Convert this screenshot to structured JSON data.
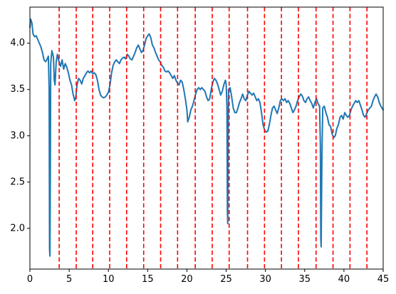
{
  "chart_data": {
    "type": "line",
    "title": "",
    "xlabel": "",
    "ylabel": "",
    "xlim": [
      0,
      45
    ],
    "ylim": [
      1.56,
      4.39
    ],
    "grid": false,
    "legend": "none",
    "x_ticks": [
      0,
      5,
      10,
      15,
      20,
      25,
      30,
      35,
      40,
      45
    ],
    "x_tick_labels": [
      "0",
      "5",
      "10",
      "15",
      "20",
      "25",
      "30",
      "35",
      "40",
      "45"
    ],
    "y_ticks": [
      2.0,
      2.5,
      3.0,
      3.5,
      4.0
    ],
    "y_tick_labels": [
      "2.0",
      "2.5",
      "3.0",
      "3.5",
      "4.0"
    ],
    "series": [
      {
        "color": "#1f77b4",
        "points": [
          [
            0.0,
            4.17
          ],
          [
            0.1,
            4.26
          ],
          [
            0.25,
            4.22
          ],
          [
            0.4,
            4.1
          ],
          [
            0.6,
            4.07
          ],
          [
            0.8,
            4.08
          ],
          [
            1.0,
            4.04
          ],
          [
            1.2,
            4.0
          ],
          [
            1.4,
            3.96
          ],
          [
            1.6,
            3.9
          ],
          [
            1.8,
            3.82
          ],
          [
            2.0,
            3.8
          ],
          [
            2.2,
            3.83
          ],
          [
            2.35,
            3.86
          ],
          [
            2.45,
            3.5
          ],
          [
            2.5,
            1.78
          ],
          [
            2.55,
            1.7
          ],
          [
            2.6,
            2.6
          ],
          [
            2.65,
            3.78
          ],
          [
            2.8,
            3.92
          ],
          [
            3.0,
            3.85
          ],
          [
            3.1,
            3.6
          ],
          [
            3.2,
            3.55
          ],
          [
            3.35,
            3.8
          ],
          [
            3.5,
            3.88
          ],
          [
            3.7,
            3.8
          ],
          [
            3.9,
            3.75
          ],
          [
            4.1,
            3.82
          ],
          [
            4.3,
            3.72
          ],
          [
            4.5,
            3.78
          ],
          [
            4.7,
            3.74
          ],
          [
            4.9,
            3.68
          ],
          [
            5.1,
            3.6
          ],
          [
            5.3,
            3.55
          ],
          [
            5.5,
            3.45
          ],
          [
            5.7,
            3.38
          ],
          [
            5.85,
            3.42
          ],
          [
            6.0,
            3.55
          ],
          [
            6.2,
            3.62
          ],
          [
            6.4,
            3.6
          ],
          [
            6.6,
            3.56
          ],
          [
            6.8,
            3.62
          ],
          [
            7.0,
            3.65
          ],
          [
            7.2,
            3.68
          ],
          [
            7.4,
            3.7
          ],
          [
            7.6,
            3.68
          ],
          [
            7.8,
            3.7
          ],
          [
            8.0,
            3.67
          ],
          [
            8.2,
            3.68
          ],
          [
            8.4,
            3.66
          ],
          [
            8.6,
            3.6
          ],
          [
            8.8,
            3.5
          ],
          [
            9.0,
            3.44
          ],
          [
            9.2,
            3.42
          ],
          [
            9.4,
            3.41
          ],
          [
            9.6,
            3.42
          ],
          [
            9.8,
            3.44
          ],
          [
            10.0,
            3.47
          ],
          [
            10.2,
            3.55
          ],
          [
            10.4,
            3.68
          ],
          [
            10.6,
            3.76
          ],
          [
            10.8,
            3.8
          ],
          [
            11.0,
            3.82
          ],
          [
            11.2,
            3.8
          ],
          [
            11.4,
            3.78
          ],
          [
            11.6,
            3.82
          ],
          [
            11.8,
            3.84
          ],
          [
            12.0,
            3.85
          ],
          [
            12.2,
            3.83
          ],
          [
            12.4,
            3.88
          ],
          [
            12.6,
            3.86
          ],
          [
            12.8,
            3.83
          ],
          [
            13.0,
            3.82
          ],
          [
            13.2,
            3.86
          ],
          [
            13.4,
            3.9
          ],
          [
            13.6,
            3.95
          ],
          [
            13.8,
            3.98
          ],
          [
            14.0,
            3.94
          ],
          [
            14.2,
            3.9
          ],
          [
            14.4,
            3.92
          ],
          [
            14.6,
            3.98
          ],
          [
            14.8,
            4.05
          ],
          [
            15.0,
            4.08
          ],
          [
            15.2,
            4.1
          ],
          [
            15.4,
            4.06
          ],
          [
            15.6,
            3.98
          ],
          [
            15.8,
            3.95
          ],
          [
            16.0,
            3.9
          ],
          [
            16.2,
            3.86
          ],
          [
            16.4,
            3.82
          ],
          [
            16.6,
            3.8
          ],
          [
            16.8,
            3.76
          ],
          [
            17.0,
            3.74
          ],
          [
            17.2,
            3.7
          ],
          [
            17.4,
            3.69
          ],
          [
            17.6,
            3.7
          ],
          [
            17.8,
            3.68
          ],
          [
            18.0,
            3.65
          ],
          [
            18.2,
            3.62
          ],
          [
            18.4,
            3.65
          ],
          [
            18.6,
            3.6
          ],
          [
            18.8,
            3.57
          ],
          [
            19.0,
            3.55
          ],
          [
            19.2,
            3.6
          ],
          [
            19.4,
            3.58
          ],
          [
            19.6,
            3.5
          ],
          [
            19.8,
            3.4
          ],
          [
            20.0,
            3.28
          ],
          [
            20.1,
            3.15
          ],
          [
            20.3,
            3.2
          ],
          [
            20.5,
            3.28
          ],
          [
            20.7,
            3.32
          ],
          [
            20.9,
            3.38
          ],
          [
            21.1,
            3.45
          ],
          [
            21.3,
            3.5
          ],
          [
            21.5,
            3.52
          ],
          [
            21.7,
            3.5
          ],
          [
            21.9,
            3.52
          ],
          [
            22.1,
            3.5
          ],
          [
            22.3,
            3.48
          ],
          [
            22.5,
            3.42
          ],
          [
            22.7,
            3.38
          ],
          [
            22.9,
            3.4
          ],
          [
            23.1,
            3.5
          ],
          [
            23.3,
            3.58
          ],
          [
            23.5,
            3.62
          ],
          [
            23.7,
            3.6
          ],
          [
            23.9,
            3.56
          ],
          [
            24.1,
            3.5
          ],
          [
            24.3,
            3.44
          ],
          [
            24.5,
            3.48
          ],
          [
            24.7,
            3.55
          ],
          [
            24.9,
            3.6
          ],
          [
            25.0,
            3.56
          ],
          [
            25.1,
            3.3
          ],
          [
            25.15,
            2.2
          ],
          [
            25.2,
            2.05
          ],
          [
            25.25,
            3.0
          ],
          [
            25.3,
            3.5
          ],
          [
            25.5,
            3.52
          ],
          [
            25.7,
            3.42
          ],
          [
            25.9,
            3.3
          ],
          [
            26.1,
            3.25
          ],
          [
            26.3,
            3.25
          ],
          [
            26.5,
            3.3
          ],
          [
            26.7,
            3.36
          ],
          [
            26.9,
            3.4
          ],
          [
            27.1,
            3.45
          ],
          [
            27.3,
            3.4
          ],
          [
            27.5,
            3.38
          ],
          [
            27.7,
            3.44
          ],
          [
            27.9,
            3.48
          ],
          [
            28.1,
            3.46
          ],
          [
            28.3,
            3.44
          ],
          [
            28.5,
            3.46
          ],
          [
            28.7,
            3.42
          ],
          [
            28.9,
            3.38
          ],
          [
            29.1,
            3.4
          ],
          [
            29.3,
            3.36
          ],
          [
            29.5,
            3.25
          ],
          [
            29.7,
            3.12
          ],
          [
            29.9,
            3.06
          ],
          [
            30.1,
            3.04
          ],
          [
            30.3,
            3.05
          ],
          [
            30.5,
            3.12
          ],
          [
            30.7,
            3.22
          ],
          [
            30.9,
            3.3
          ],
          [
            31.1,
            3.32
          ],
          [
            31.3,
            3.28
          ],
          [
            31.5,
            3.24
          ],
          [
            31.7,
            3.3
          ],
          [
            31.9,
            3.38
          ],
          [
            32.1,
            3.4
          ],
          [
            32.3,
            3.38
          ],
          [
            32.5,
            3.4
          ],
          [
            32.7,
            3.36
          ],
          [
            32.9,
            3.38
          ],
          [
            33.1,
            3.35
          ],
          [
            33.3,
            3.3
          ],
          [
            33.5,
            3.25
          ],
          [
            33.7,
            3.28
          ],
          [
            33.9,
            3.32
          ],
          [
            34.1,
            3.38
          ],
          [
            34.3,
            3.42
          ],
          [
            34.5,
            3.45
          ],
          [
            34.7,
            3.43
          ],
          [
            34.9,
            3.38
          ],
          [
            35.1,
            3.36
          ],
          [
            35.3,
            3.4
          ],
          [
            35.5,
            3.42
          ],
          [
            35.7,
            3.38
          ],
          [
            35.9,
            3.35
          ],
          [
            36.1,
            3.3
          ],
          [
            36.3,
            3.36
          ],
          [
            36.5,
            3.4
          ],
          [
            36.7,
            3.35
          ],
          [
            36.9,
            3.32
          ],
          [
            37.0,
            2.9
          ],
          [
            37.05,
            1.9
          ],
          [
            37.1,
            1.8
          ],
          [
            37.2,
            2.8
          ],
          [
            37.3,
            3.3
          ],
          [
            37.5,
            3.32
          ],
          [
            37.7,
            3.25
          ],
          [
            37.9,
            3.2
          ],
          [
            38.1,
            3.12
          ],
          [
            38.3,
            3.1
          ],
          [
            38.5,
            3.02
          ],
          [
            38.7,
            2.98
          ],
          [
            38.9,
            3.0
          ],
          [
            39.1,
            3.08
          ],
          [
            39.3,
            3.12
          ],
          [
            39.5,
            3.2
          ],
          [
            39.7,
            3.22
          ],
          [
            39.9,
            3.18
          ],
          [
            40.1,
            3.25
          ],
          [
            40.3,
            3.22
          ],
          [
            40.5,
            3.2
          ],
          [
            40.7,
            3.22
          ],
          [
            40.9,
            3.28
          ],
          [
            41.1,
            3.32
          ],
          [
            41.3,
            3.35
          ],
          [
            41.5,
            3.38
          ],
          [
            41.7,
            3.36
          ],
          [
            41.9,
            3.38
          ],
          [
            42.1,
            3.33
          ],
          [
            42.3,
            3.28
          ],
          [
            42.5,
            3.22
          ],
          [
            42.7,
            3.2
          ],
          [
            42.9,
            3.24
          ],
          [
            43.1,
            3.28
          ],
          [
            43.3,
            3.3
          ],
          [
            43.5,
            3.32
          ],
          [
            43.7,
            3.38
          ],
          [
            43.9,
            3.42
          ],
          [
            44.1,
            3.45
          ],
          [
            44.3,
            3.42
          ],
          [
            44.5,
            3.36
          ],
          [
            44.7,
            3.32
          ],
          [
            45.0,
            3.28
          ]
        ]
      }
    ],
    "vlines": {
      "color": "#ff0000",
      "style": "dashed",
      "x": [
        3.73,
        5.9,
        8.0,
        10.16,
        12.32,
        14.49,
        16.65,
        18.81,
        21.06,
        23.22,
        25.38,
        27.72,
        29.88,
        32.04,
        34.2,
        36.45,
        38.61,
        40.77,
        42.93
      ]
    }
  }
}
